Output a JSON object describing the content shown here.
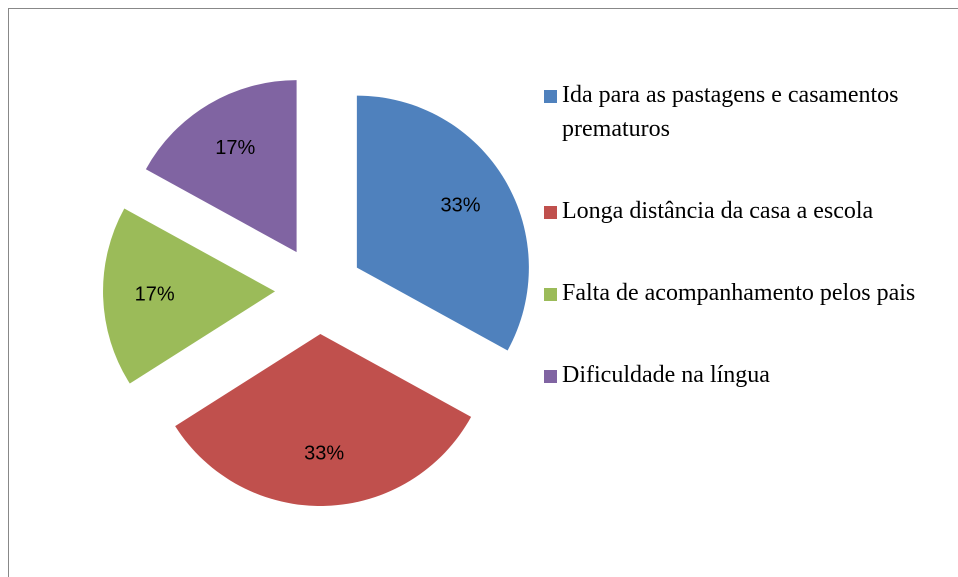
{
  "chart_data": {
    "type": "pie",
    "categories": [
      "Ida para as pastagens e casamentos prematuros",
      "Longa distância da casa a escola",
      "Falta de acompanhamento pelos pais",
      "Dificuldade na língua"
    ],
    "values": [
      33,
      33,
      17,
      17
    ],
    "value_labels": [
      "33%",
      "33%",
      "17%",
      "17%"
    ],
    "colors": [
      "#4f81bd",
      "#c0504d",
      "#9bbb59",
      "#8064a2"
    ],
    "legend": "right"
  }
}
